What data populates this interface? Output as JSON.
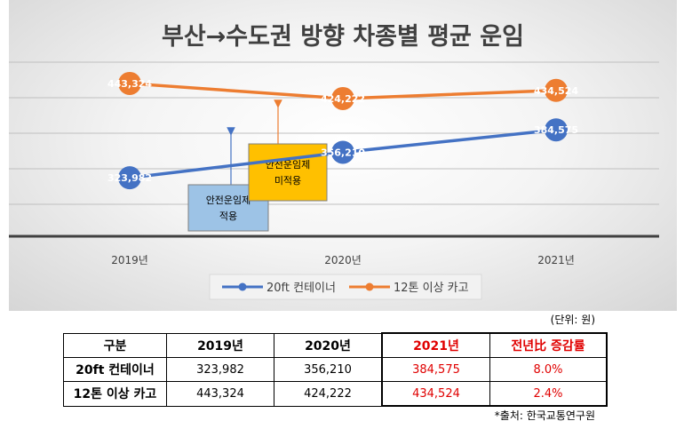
{
  "chart_data": {
    "type": "line",
    "title": "부산→수도권 방향 차종별 평균 운임",
    "categories": [
      "2019년",
      "2020년",
      "2021년"
    ],
    "series": [
      {
        "name": "20ft 컨테이너",
        "values": [
          323982,
          356210,
          384575
        ],
        "labels": [
          "323,982",
          "356,210",
          "384,575"
        ],
        "color": "#4472c4"
      },
      {
        "name": "12톤 이상 카고",
        "values": [
          443324,
          424222,
          434524
        ],
        "labels": [
          "443,324",
          "424,222",
          "434,524"
        ],
        "color": "#ed7d31"
      }
    ],
    "annotations": [
      {
        "lines": [
          "안전운임제",
          "적용"
        ],
        "color": "#9dc3e6",
        "arrow_color": "#4472c4"
      },
      {
        "lines": [
          "안전운임제",
          "미적용"
        ],
        "color": "#ffc000",
        "arrow_color": "#ed7d31"
      }
    ],
    "legend_placement": "bottom",
    "grid": true
  },
  "table": {
    "unit_note": "(단위: 원)",
    "headers": [
      "구분",
      "2019년",
      "2020년",
      "2021년",
      "전년比 증감률"
    ],
    "rows": [
      {
        "label": "20ft 컨테이너",
        "cells": [
          "323,982",
          "356,210",
          "384,575",
          "8.0%"
        ]
      },
      {
        "label": "12톤 이상 카고",
        "cells": [
          "443,324",
          "424,222",
          "434,524",
          "2.4%"
        ]
      }
    ],
    "source": "*출처: 한국교통연구원"
  },
  "colors": {
    "highlight_text": "#e00000",
    "highlight_border": "#c00000"
  }
}
